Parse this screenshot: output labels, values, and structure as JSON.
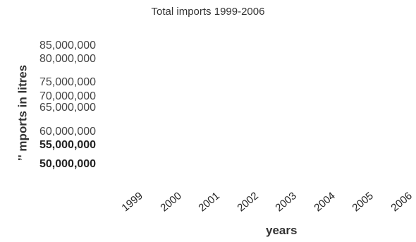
{
  "chart_data": {
    "type": "line",
    "title": "Total imports 1999-2006",
    "xlabel": "years",
    "ylabel": "’' mports in litres",
    "x": [
      "1999",
      "2000",
      "2001",
      "2002",
      "2003",
      "2004",
      "2005",
      "2006"
    ],
    "y_ticks": [
      {
        "value": 85000000,
        "label": "85,000,000",
        "bold": false
      },
      {
        "value": 80000000,
        "label": "80,000,000",
        "bold": false
      },
      {
        "value": 75000000,
        "label": "75,000,000",
        "bold": false
      },
      {
        "value": 70000000,
        "label": "70,000,000",
        "bold": false
      },
      {
        "value": 65000000,
        "label": "65,000,000",
        "bold": false
      },
      {
        "value": 60000000,
        "label": "60,000,000",
        "bold": false
      },
      {
        "value": 55000000,
        "label": "55,000,000",
        "bold": true
      },
      {
        "value": 50000000,
        "label": "50,000,000",
        "bold": true
      }
    ],
    "series": [],
    "ylim": [
      50000000,
      85000000
    ],
    "grid": false
  }
}
